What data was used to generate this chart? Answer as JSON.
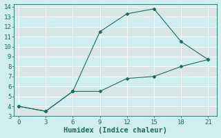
{
  "xlabel": "Humidex (Indice chaleur)",
  "line1_x": [
    0,
    3,
    6,
    9,
    12,
    15,
    18,
    21
  ],
  "line1_y": [
    4.0,
    3.5,
    5.5,
    11.5,
    13.3,
    13.8,
    10.5,
    8.7
  ],
  "line2_x": [
    0,
    3,
    6,
    9,
    12,
    15,
    18,
    21
  ],
  "line2_y": [
    4.0,
    3.5,
    5.5,
    5.5,
    6.8,
    7.0,
    8.0,
    8.7
  ],
  "line_color": "#1a6b5a",
  "marker": "D",
  "marker_size": 2.5,
  "xlim": [
    -0.5,
    22
  ],
  "ylim": [
    3,
    14.3
  ],
  "xticks": [
    0,
    3,
    6,
    9,
    12,
    15,
    18,
    21
  ],
  "yticks": [
    3,
    4,
    5,
    6,
    7,
    8,
    9,
    10,
    11,
    12,
    13,
    14
  ],
  "background_color": "#d0eeee",
  "grid_color": "#b8dede",
  "tick_fontsize": 6.5,
  "label_fontsize": 7.5
}
